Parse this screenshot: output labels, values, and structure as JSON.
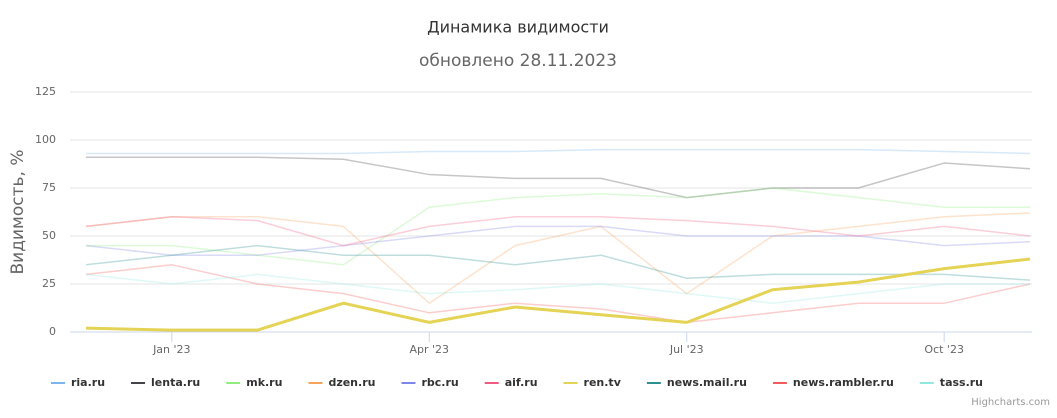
{
  "chart_data": {
    "type": "line",
    "title": "Динамика видимости",
    "subtitle": "обновлено 28.11.2023",
    "y_label": "Видимость, %",
    "credits": "Highcharts.com",
    "x": [
      "2022-12",
      "2023-01",
      "2023-02",
      "2023-03",
      "2023-04",
      "2023-05",
      "2023-06",
      "2023-07",
      "2023-08",
      "2023-09",
      "2023-10",
      "2023-11"
    ],
    "xlim": [
      "2022-12",
      "2023-11"
    ],
    "xticks": [
      {
        "value": "2023-01",
        "label": "Jan '23"
      },
      {
        "value": "2023-04",
        "label": "Apr '23"
      },
      {
        "value": "2023-07",
        "label": "Jul '23"
      },
      {
        "value": "2023-10",
        "label": "Oct '23"
      }
    ],
    "ylim": [
      0,
      125
    ],
    "yticks": [
      0,
      25,
      50,
      75,
      100,
      125
    ],
    "grid": true,
    "legend": "bottom",
    "series": [
      {
        "name": "ria.ru",
        "color": "#7cb5ec",
        "values": [
          93,
          93,
          93,
          93,
          94,
          94,
          95,
          95,
          95,
          95,
          94,
          93
        ]
      },
      {
        "name": "lenta.ru",
        "color": "#434348",
        "values": [
          91,
          91,
          91,
          90,
          82,
          80,
          80,
          70,
          75,
          75,
          88,
          85
        ]
      },
      {
        "name": "mk.ru",
        "color": "#90ed7d",
        "values": [
          45,
          45,
          40,
          35,
          65,
          70,
          72,
          70,
          75,
          70,
          65,
          65
        ]
      },
      {
        "name": "dzen.ru",
        "color": "#f7a35c",
        "values": [
          55,
          60,
          60,
          55,
          15,
          45,
          55,
          20,
          50,
          55,
          60,
          62
        ]
      },
      {
        "name": "rbc.ru",
        "color": "#8085e9",
        "values": [
          45,
          40,
          40,
          45,
          50,
          55,
          55,
          50,
          50,
          50,
          45,
          47
        ]
      },
      {
        "name": "aif.ru",
        "color": "#f15c80",
        "values": [
          55,
          60,
          58,
          45,
          55,
          60,
          60,
          58,
          55,
          50,
          55,
          50
        ]
      },
      {
        "name": "ren.tv",
        "color": "#e4d354",
        "highlighted": true,
        "values": [
          2,
          1,
          1,
          15,
          5,
          13,
          9,
          5,
          22,
          26,
          33,
          38
        ]
      },
      {
        "name": "news.mail.ru",
        "color": "#2b908f",
        "values": [
          35,
          40,
          45,
          40,
          40,
          35,
          40,
          28,
          30,
          30,
          30,
          27
        ]
      },
      {
        "name": "news.rambler.ru",
        "color": "#f45b5b",
        "values": [
          30,
          35,
          25,
          20,
          10,
          15,
          12,
          5,
          10,
          15,
          15,
          25
        ]
      },
      {
        "name": "tass.ru",
        "color": "#91e8e1",
        "values": [
          30,
          25,
          30,
          25,
          20,
          22,
          25,
          20,
          15,
          20,
          25,
          25
        ]
      }
    ]
  }
}
